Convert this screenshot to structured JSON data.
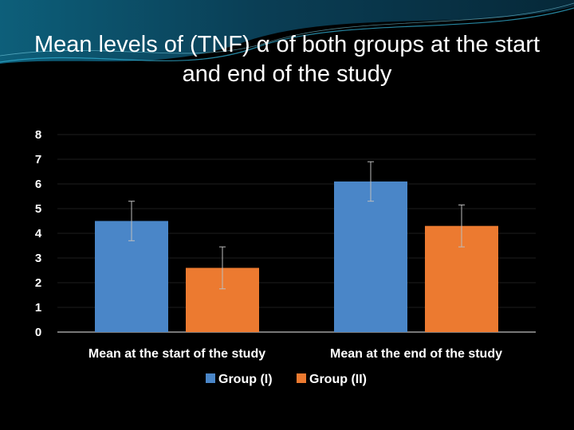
{
  "slide": {
    "title": "Mean levels of (TNF) α of both groups at the start and end of the study"
  },
  "chart_data": {
    "type": "bar",
    "categories": [
      "Mean at the start of the study",
      "Mean at the end of the study"
    ],
    "series": [
      {
        "name": "Group (I)",
        "color": "#4a86c8",
        "values": [
          4.5,
          6.1
        ],
        "error": [
          0.8,
          0.8
        ]
      },
      {
        "name": "Group (II)",
        "color": "#ec7a30",
        "values": [
          2.6,
          4.3
        ],
        "error": [
          0.85,
          0.85
        ]
      }
    ],
    "ylim": [
      0,
      8
    ],
    "yticks": [
      "0",
      "1",
      "2",
      "3",
      "4",
      "5",
      "6",
      "7",
      "8"
    ],
    "grid": true,
    "legend": "bottom",
    "xlabel": "",
    "ylabel": ""
  }
}
